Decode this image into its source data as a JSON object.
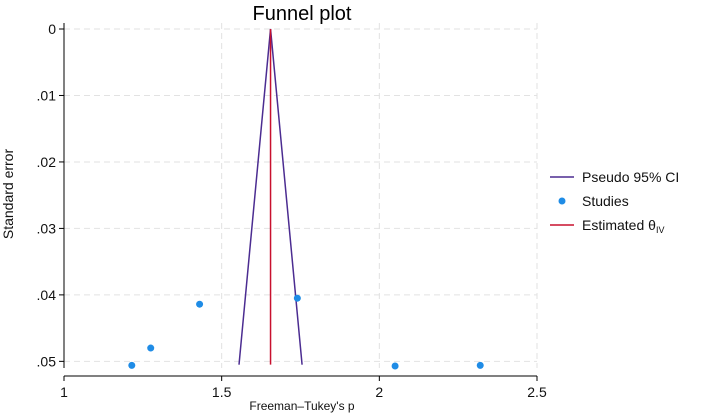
{
  "chart_data": {
    "type": "scatter",
    "title": "Funnel plot",
    "xlabel": "Freeman–Tukey's p",
    "ylabel": "Standard error",
    "xlim": [
      1,
      2.5
    ],
    "ylim": [
      0,
      0.051
    ],
    "y_inverted": true,
    "grid": true,
    "x_ticks": [
      1,
      1.5,
      2,
      2.5
    ],
    "x_tick_labels": [
      "1",
      "1.5",
      "2",
      "2.5"
    ],
    "y_ticks": [
      0,
      0.01,
      0.02,
      0.03,
      0.04,
      0.05
    ],
    "y_tick_labels": [
      "0",
      ".01",
      ".02",
      ".03",
      ".04",
      ".05"
    ],
    "legend_position": "right",
    "series": [
      {
        "name": "Pseudo 95% CI",
        "kind": "line",
        "color": "#4b2c91",
        "points": [
          {
            "x": 1.555,
            "y": 0.0505
          },
          {
            "x": 1.655,
            "y": 0
          },
          {
            "x": 1.755,
            "y": 0.0505
          }
        ]
      },
      {
        "name": "Studies",
        "kind": "scatter",
        "color": "#1f8ce6",
        "points": [
          {
            "x": 1.215,
            "y": 0.0506
          },
          {
            "x": 1.275,
            "y": 0.048
          },
          {
            "x": 1.43,
            "y": 0.0414
          },
          {
            "x": 1.74,
            "y": 0.0405
          },
          {
            "x": 2.05,
            "y": 0.0507
          },
          {
            "x": 2.32,
            "y": 0.0506
          }
        ]
      },
      {
        "name": "Estimated θIV",
        "kind": "vline",
        "color": "#c8102e",
        "x": 1.655,
        "y_range": [
          0,
          0.0505
        ]
      }
    ]
  },
  "legend": {
    "items": [
      {
        "label": "Pseudo 95% CI"
      },
      {
        "label": "Studies"
      },
      {
        "label": "Estimated θ",
        "subscript": "IV"
      }
    ]
  }
}
